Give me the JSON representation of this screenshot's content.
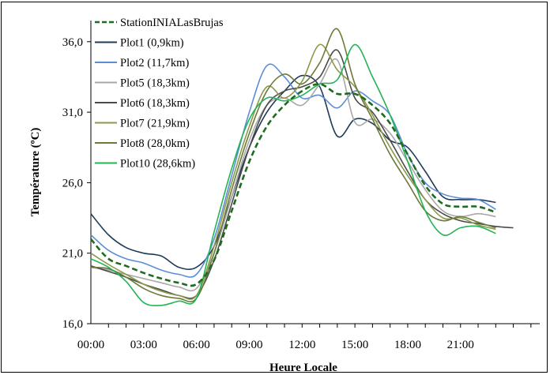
{
  "chart_data": {
    "type": "line",
    "xlabel": "Heure Locale",
    "ylabel": "Température (ºC)",
    "xlim": [
      0,
      25.5
    ],
    "ylim": [
      16.0,
      37.5
    ],
    "x_ticks": [
      0,
      3,
      6,
      9,
      12,
      15,
      18,
      21
    ],
    "x_tick_labels": [
      "00:00",
      "03:00",
      "06:00",
      "09:00",
      "12:00",
      "15:00",
      "18:00",
      "21:00"
    ],
    "y_ticks": [
      16,
      21,
      26,
      31,
      36
    ],
    "y_tick_labels": [
      "16,0",
      "21,0",
      "26,0",
      "31,0",
      "36,0"
    ],
    "grid": false,
    "legend_position": "top-left",
    "x": [
      0,
      1,
      2,
      3,
      4,
      5,
      6,
      7,
      8,
      9,
      10,
      11,
      12,
      13,
      14,
      15,
      16,
      17,
      18,
      19,
      20,
      21,
      22,
      23
    ],
    "series": [
      {
        "name": "StationINIALasBrujas",
        "color": "#1f6b1f",
        "dashed": true,
        "values": [
          22.0,
          20.6,
          20.1,
          19.6,
          19.2,
          18.9,
          18.8,
          20.5,
          24.0,
          27.5,
          30.0,
          31.5,
          32.5,
          33.0,
          32.3,
          32.3,
          31.5,
          30.2,
          28.0,
          25.8,
          24.5,
          24.3,
          24.3,
          23.9
        ]
      },
      {
        "name": "Plot1 (0,9km)",
        "color": "#1f3a5a",
        "values": [
          23.8,
          22.3,
          21.4,
          21.0,
          20.8,
          20.0,
          20.0,
          21.5,
          25.0,
          28.5,
          31.0,
          32.5,
          33.6,
          32.8,
          29.3,
          30.5,
          30.2,
          29.0,
          28.5,
          26.8,
          25.0,
          24.8,
          24.8,
          24.6
        ]
      },
      {
        "name": "Plot2 (11,7km)",
        "color": "#5b8ed6",
        "values": [
          22.3,
          21.2,
          20.6,
          20.3,
          19.8,
          19.5,
          19.5,
          22.0,
          26.5,
          31.0,
          34.3,
          33.5,
          32.0,
          32.2,
          31.3,
          32.5,
          31.8,
          30.8,
          28.0,
          26.0,
          25.2,
          24.9,
          24.8,
          24.1
        ]
      },
      {
        "name": "Plot5 (18,3km)",
        "color": "#a8a8a8",
        "values": [
          20.0,
          19.8,
          19.5,
          19.2,
          18.9,
          18.6,
          18.5,
          21.0,
          25.0,
          29.0,
          31.5,
          32.0,
          31.5,
          33.0,
          34.7,
          30.3,
          30.5,
          29.5,
          27.5,
          25.5,
          24.0,
          23.6,
          23.8,
          23.6
        ]
      },
      {
        "name": "Plot6 (18,3km)",
        "color": "#4a4a4a",
        "values": [
          20.1,
          19.7,
          19.3,
          18.8,
          18.4,
          18.0,
          18.0,
          20.5,
          24.5,
          28.5,
          31.5,
          32.5,
          32.8,
          33.5,
          35.4,
          32.0,
          31.0,
          29.0,
          26.8,
          24.8,
          23.8,
          23.3,
          23.1,
          22.9
        ]
      },
      {
        "name": "Plot7 (21,9km)",
        "color": "#8a9a4a",
        "values": [
          21.0,
          20.2,
          19.5,
          18.8,
          18.3,
          18.0,
          18.0,
          21.5,
          26.0,
          30.0,
          32.8,
          32.0,
          33.2,
          35.8,
          34.0,
          32.8,
          30.8,
          28.5,
          26.5,
          24.8,
          23.5,
          23.5,
          23.0,
          22.7
        ]
      },
      {
        "name": "Plot8 (28,0km)",
        "color": "#6b7a3a",
        "values": [
          20.0,
          19.9,
          19.3,
          18.5,
          18.0,
          17.8,
          17.8,
          21.0,
          25.5,
          29.5,
          32.5,
          33.7,
          33.0,
          34.5,
          36.9,
          33.0,
          30.5,
          28.0,
          26.0,
          24.0,
          23.3,
          23.6,
          23.2,
          22.8
        ]
      },
      {
        "name": "Plot10 (28,6km)",
        "color": "#22b455",
        "values": [
          20.6,
          20.0,
          19.0,
          17.5,
          17.3,
          17.6,
          17.8,
          22.5,
          27.0,
          30.5,
          32.0,
          31.8,
          32.2,
          33.0,
          33.3,
          35.8,
          33.5,
          30.8,
          27.5,
          24.0,
          22.3,
          22.8,
          22.9,
          22.4
        ]
      }
    ],
    "extra_point": {
      "x": 24,
      "y": 22.8
    }
  }
}
